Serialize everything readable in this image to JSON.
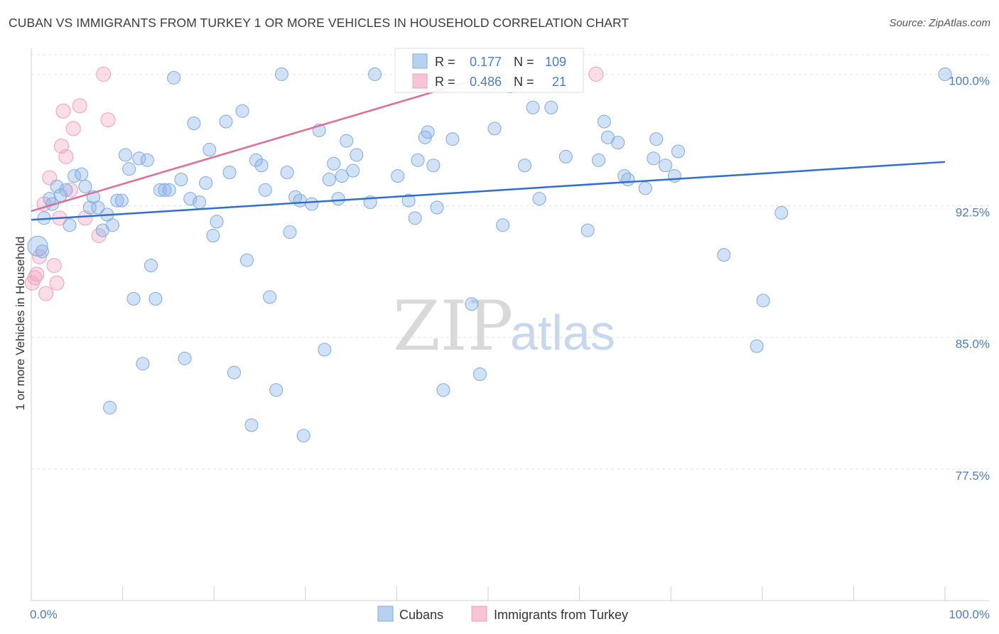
{
  "title": "CUBAN VS IMMIGRANTS FROM TURKEY 1 OR MORE VEHICLES IN HOUSEHOLD CORRELATION CHART",
  "source": "Source: ZipAtlas.com",
  "watermark": {
    "zip": "ZIP",
    "atlas": "atlas"
  },
  "chart_data": {
    "type": "scatter",
    "xlabel": "",
    "ylabel": "1 or more Vehicles in Household",
    "xlim": [
      0,
      100
    ],
    "ylim": [
      70,
      102
    ],
    "x_tick_labels": [
      {
        "value": 0,
        "label": "0.0%"
      },
      {
        "value": 100,
        "label": "100.0%"
      }
    ],
    "y_ticks": [
      {
        "value": 100,
        "label": "100.0%"
      },
      {
        "value": 92.5,
        "label": "92.5%"
      },
      {
        "value": 85,
        "label": "85.0%"
      },
      {
        "value": 77.5,
        "label": "77.5%"
      }
    ],
    "grid": "horizontal dashed",
    "legend_position": "bottom-center",
    "colors": {
      "cubans": "#8ab4e8",
      "cubans_line": "#2f6fce",
      "turkey": "#f2a6be",
      "turkey_line": "#e06b93"
    },
    "stats": [
      {
        "series": "Cubans",
        "r_label": "R =",
        "r": "0.177",
        "n_label": "N =",
        "n": "109"
      },
      {
        "series": "Immigrants from Turkey",
        "r_label": "R =",
        "r": "0.486",
        "n_label": "N =",
        "n": "21"
      }
    ],
    "series": [
      {
        "name": "Cubans",
        "trend": {
          "x": [
            0,
            100
          ],
          "y": [
            91.7,
            95.0
          ]
        },
        "points": [
          [
            0.7,
            90.2,
            14
          ],
          [
            1.2,
            89.9,
            9
          ],
          [
            1.4,
            91.8,
            9
          ],
          [
            2.0,
            92.9,
            9
          ],
          [
            2.3,
            92.6,
            9
          ],
          [
            2.8,
            93.6,
            9
          ],
          [
            3.2,
            93.1,
            9
          ],
          [
            3.8,
            93.4,
            9
          ],
          [
            4.2,
            91.4,
            9
          ],
          [
            4.7,
            94.2,
            9
          ],
          [
            5.5,
            94.3,
            9
          ],
          [
            5.9,
            93.6,
            9
          ],
          [
            6.4,
            92.4,
            9
          ],
          [
            6.8,
            93.0,
            9
          ],
          [
            7.3,
            92.4,
            9
          ],
          [
            7.8,
            91.1,
            9
          ],
          [
            8.3,
            92.0,
            9
          ],
          [
            8.6,
            81.0,
            9
          ],
          [
            8.9,
            91.4,
            9
          ],
          [
            9.4,
            92.8,
            9
          ],
          [
            9.9,
            92.8,
            9
          ],
          [
            10.3,
            95.4,
            9
          ],
          [
            10.7,
            94.6,
            9
          ],
          [
            11.2,
            87.2,
            9
          ],
          [
            11.8,
            95.2,
            9
          ],
          [
            12.2,
            83.5,
            9
          ],
          [
            12.7,
            95.1,
            9
          ],
          [
            13.1,
            89.1,
            9
          ],
          [
            13.6,
            87.2,
            9
          ],
          [
            14.1,
            93.4,
            9
          ],
          [
            14.6,
            93.4,
            9
          ],
          [
            15.1,
            93.4,
            9
          ],
          [
            15.6,
            99.8,
            9
          ],
          [
            16.4,
            94.0,
            9
          ],
          [
            16.8,
            83.8,
            9
          ],
          [
            17.4,
            92.9,
            9
          ],
          [
            17.8,
            97.2,
            9
          ],
          [
            18.4,
            92.7,
            9
          ],
          [
            19.1,
            93.8,
            9
          ],
          [
            19.5,
            95.7,
            9
          ],
          [
            19.9,
            90.8,
            9
          ],
          [
            20.3,
            91.6,
            9
          ],
          [
            21.3,
            97.3,
            9
          ],
          [
            21.7,
            94.4,
            9
          ],
          [
            22.2,
            83.0,
            9
          ],
          [
            23.1,
            97.9,
            9
          ],
          [
            23.6,
            89.4,
            9
          ],
          [
            24.1,
            80.0,
            9
          ],
          [
            24.6,
            95.1,
            9
          ],
          [
            25.2,
            94.8,
            9
          ],
          [
            25.6,
            93.4,
            9
          ],
          [
            26.1,
            87.3,
            9
          ],
          [
            26.8,
            82.0,
            9
          ],
          [
            27.4,
            100.0,
            9
          ],
          [
            28.0,
            94.4,
            9
          ],
          [
            28.3,
            91.0,
            9
          ],
          [
            28.9,
            93.0,
            9
          ],
          [
            29.4,
            92.8,
            9
          ],
          [
            29.8,
            79.4,
            9
          ],
          [
            30.7,
            92.6,
            9
          ],
          [
            31.5,
            96.8,
            9
          ],
          [
            32.1,
            84.3,
            9
          ],
          [
            32.6,
            94.0,
            9
          ],
          [
            33.1,
            94.9,
            9
          ],
          [
            33.6,
            92.9,
            9
          ],
          [
            34.0,
            94.2,
            9
          ],
          [
            34.5,
            96.2,
            9
          ],
          [
            35.2,
            94.5,
            9
          ],
          [
            35.6,
            95.4,
            9
          ],
          [
            37.1,
            92.7,
            9
          ],
          [
            37.6,
            100.0,
            9
          ],
          [
            40.1,
            94.2,
            9
          ],
          [
            41.3,
            92.8,
            9
          ],
          [
            42.0,
            91.8,
            9
          ],
          [
            42.3,
            95.1,
            9
          ],
          [
            43.1,
            96.4,
            9
          ],
          [
            43.4,
            96.7,
            9
          ],
          [
            44.0,
            94.8,
            9
          ],
          [
            44.4,
            92.4,
            9
          ],
          [
            45.1,
            82.0,
            9
          ],
          [
            46.1,
            96.3,
            9
          ],
          [
            48.2,
            86.9,
            9
          ],
          [
            49.1,
            82.9,
            9
          ],
          [
            50.7,
            96.9,
            9
          ],
          [
            51.6,
            91.4,
            9
          ],
          [
            52.4,
            99.3,
            9
          ],
          [
            54.0,
            94.8,
            9
          ],
          [
            54.9,
            98.1,
            9
          ],
          [
            55.6,
            92.9,
            9
          ],
          [
            56.9,
            98.1,
            9
          ],
          [
            58.5,
            95.3,
            9
          ],
          [
            60.9,
            91.1,
            9
          ],
          [
            62.1,
            95.1,
            9
          ],
          [
            62.7,
            97.3,
            9
          ],
          [
            63.1,
            96.4,
            9
          ],
          [
            64.2,
            96.1,
            9
          ],
          [
            64.9,
            94.2,
            9
          ],
          [
            65.3,
            94.0,
            9
          ],
          [
            67.2,
            93.5,
            9
          ],
          [
            68.1,
            95.2,
            9
          ],
          [
            68.4,
            96.3,
            9
          ],
          [
            69.4,
            94.8,
            9
          ],
          [
            70.4,
            94.2,
            9
          ],
          [
            70.8,
            95.6,
            9
          ],
          [
            75.8,
            89.7,
            9
          ],
          [
            79.4,
            84.5,
            9
          ],
          [
            80.1,
            87.1,
            9
          ],
          [
            82.1,
            92.1,
            9
          ],
          [
            100.0,
            100.0,
            9
          ]
        ]
      },
      {
        "name": "Immigrants from Turkey",
        "trend": {
          "x": [
            0,
            48
          ],
          "y": [
            92.2,
            99.6
          ]
        },
        "points": [
          [
            0.1,
            88.1,
            10
          ],
          [
            0.4,
            88.4,
            10
          ],
          [
            0.6,
            88.6,
            10
          ],
          [
            0.9,
            89.6,
            10
          ],
          [
            1.4,
            92.6,
            10
          ],
          [
            1.6,
            87.5,
            10
          ],
          [
            2.0,
            94.1,
            10
          ],
          [
            2.5,
            89.1,
            10
          ],
          [
            2.8,
            88.1,
            10
          ],
          [
            3.1,
            91.8,
            10
          ],
          [
            3.3,
            95.9,
            10
          ],
          [
            3.5,
            97.9,
            10
          ],
          [
            3.8,
            95.3,
            10
          ],
          [
            4.3,
            93.4,
            10
          ],
          [
            4.6,
            96.9,
            10
          ],
          [
            5.3,
            98.2,
            10
          ],
          [
            5.9,
            91.8,
            10
          ],
          [
            7.4,
            90.8,
            10
          ],
          [
            7.9,
            100.0,
            10
          ],
          [
            8.4,
            97.4,
            10
          ],
          [
            61.8,
            100.0,
            10
          ]
        ]
      }
    ]
  },
  "legend": [
    {
      "label": "Cubans",
      "color": "#8ab4e8"
    },
    {
      "label": "Immigrants from Turkey",
      "color": "#f2a6be"
    }
  ]
}
